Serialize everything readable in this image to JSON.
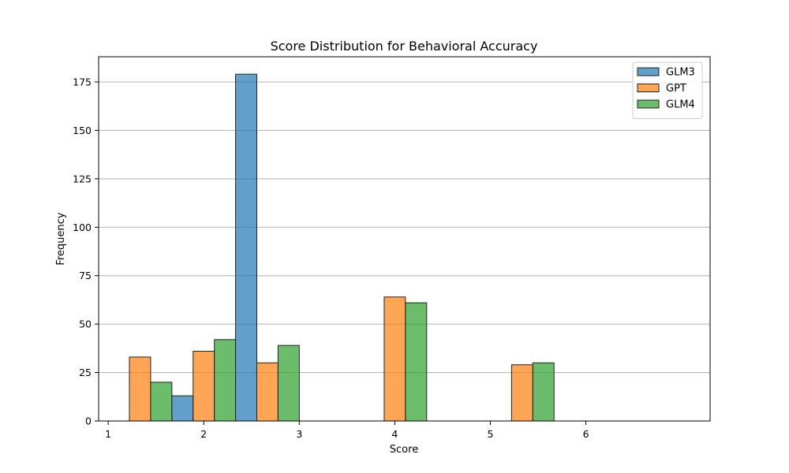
{
  "chart_data": {
    "type": "bar",
    "title": "Score Distribution for Behavioral Accuracy",
    "xlabel": "Score",
    "ylabel": "Frequency",
    "xlim": [
      0.9,
      7.3
    ],
    "ylim": [
      0,
      188
    ],
    "xticks": [
      1,
      2,
      3,
      4,
      5,
      6
    ],
    "yticks": [
      0,
      25,
      50,
      75,
      100,
      125,
      150,
      175
    ],
    "bins": [
      [
        1.0,
        1.6667
      ],
      [
        1.6667,
        2.3333
      ],
      [
        2.3333,
        3.0
      ],
      [
        3.0,
        3.6667
      ],
      [
        3.6667,
        4.3333
      ],
      [
        4.3333,
        5.0
      ],
      [
        5.0,
        5.6667
      ],
      [
        5.6667,
        6.3333
      ],
      [
        6.3333,
        7.0
      ]
    ],
    "series": [
      {
        "name": "GLM3",
        "color": "#1f77b4",
        "values": [
          0,
          13,
          179,
          0,
          0,
          0,
          0,
          0,
          0
        ]
      },
      {
        "name": "GPT",
        "color": "#ff7f0e",
        "values": [
          33,
          36,
          30,
          0,
          64,
          0,
          29,
          0,
          0
        ]
      },
      {
        "name": "GLM4",
        "color": "#2ca02c",
        "values": [
          20,
          42,
          39,
          0,
          61,
          0,
          30,
          0,
          0
        ]
      }
    ],
    "grid": "y",
    "legend": "top-right"
  }
}
